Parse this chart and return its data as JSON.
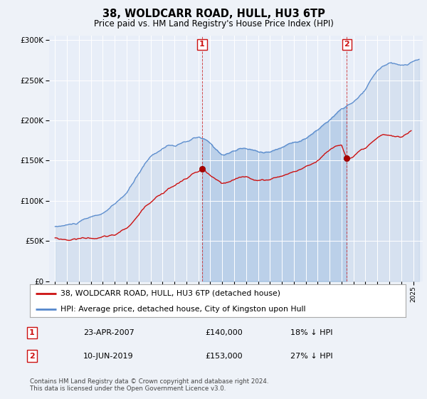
{
  "title": "38, WOLDCARR ROAD, HULL, HU3 6TP",
  "subtitle": "Price paid vs. HM Land Registry's House Price Index (HPI)",
  "background_color": "#eef2f8",
  "plot_bg_color": "#e8eef8",
  "legend_label_red": "38, WOLDCARR ROAD, HULL, HU3 6TP (detached house)",
  "legend_label_blue": "HPI: Average price, detached house, City of Kingston upon Hull",
  "footer": "Contains HM Land Registry data © Crown copyright and database right 2024.\nThis data is licensed under the Open Government Licence v3.0.",
  "annotation1": {
    "label": "1",
    "date": "23-APR-2007",
    "price": "£140,000",
    "hpi": "18% ↓ HPI"
  },
  "annotation2": {
    "label": "2",
    "date": "10-JUN-2019",
    "price": "£153,000",
    "hpi": "27% ↓ HPI"
  },
  "sale1_x": 2007.31,
  "sale1_y": 140000,
  "sale2_x": 2019.44,
  "sale2_y": 153000,
  "ylim": [
    0,
    305000
  ],
  "xlim": [
    1994.5,
    2025.8
  ]
}
